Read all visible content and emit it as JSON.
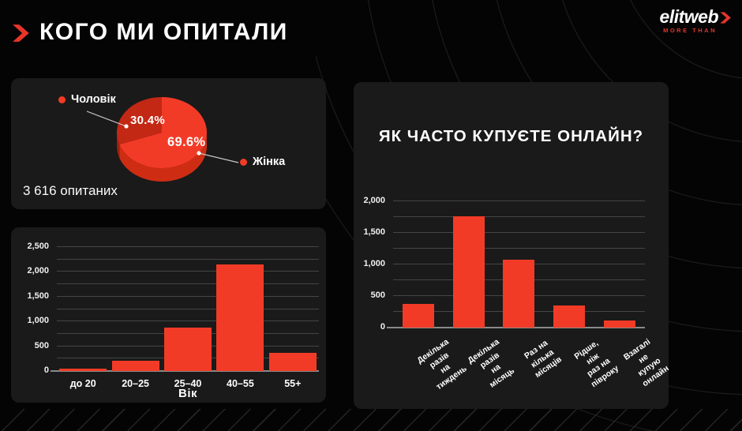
{
  "slide": {
    "title": "КОГО МИ ОПИТАЛИ",
    "logo": {
      "brand": "elitweb",
      "tagline": "MORE THAN"
    }
  },
  "colors": {
    "background": "#040404",
    "panel": "#1A1A1A",
    "accent": "#F23B27",
    "pie_secondary": "#C32814",
    "grid": "#454545",
    "axis_line": "#8A8A8A",
    "text": "#FFFFFF"
  },
  "chart_data": [
    {
      "type": "pie",
      "note": "3 616 опитаних",
      "legend_position": "around",
      "slices": [
        {
          "label": "Жінка",
          "value": 69.6,
          "display": "69.6%",
          "color": "#F23B27",
          "rim": "#CE2D14"
        },
        {
          "label": "Чоловік",
          "value": 30.4,
          "display": "30.4%",
          "color": "#C32814",
          "rim": "#9C200C"
        }
      ]
    },
    {
      "type": "bar",
      "title": "",
      "xlabel": "Вік",
      "ylabel": "",
      "categories": [
        "до 20",
        "20–25",
        "25–40",
        "40–55",
        "55+"
      ],
      "values": [
        30,
        200,
        870,
        2150,
        370
      ],
      "ylim": [
        0,
        2500
      ],
      "yticks": [
        0,
        500,
        1000,
        1500,
        2000,
        2500
      ],
      "grid_step": 250,
      "grid": "on",
      "bar_color": "#F23B27"
    },
    {
      "type": "bar",
      "title": "ЯК ЧАСТО КУПУЄТЕ ОНЛАЙН?",
      "xlabel": "",
      "ylabel": "",
      "categories": [
        [
          "Декілька разів",
          "на тиждень"
        ],
        [
          "Декілька разів",
          "на місяць"
        ],
        [
          "Раз на кілька",
          "місяців"
        ],
        [
          "Рідше, ніж",
          "раз на півроку"
        ],
        [
          "Взагалі не",
          "купую онлайн"
        ]
      ],
      "values": [
        370,
        1760,
        1070,
        350,
        110
      ],
      "ylim": [
        0,
        2000
      ],
      "yticks": [
        0,
        500,
        1000,
        1500,
        2000
      ],
      "grid_step": 250,
      "grid": "on",
      "bar_color": "#F23B27"
    }
  ]
}
